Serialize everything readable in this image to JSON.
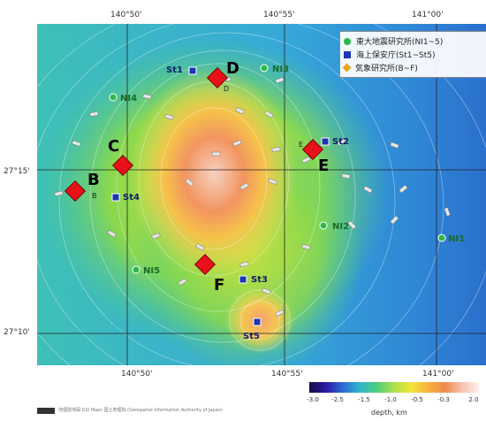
{
  "map": {
    "lon_ticks_top": [
      "140°50'",
      "140°55'",
      "141°00'"
    ],
    "lon_ticks_bottom": [
      "140°50'",
      "140°55'",
      "141°00'"
    ],
    "lat_ticks": [
      "27°15'",
      "27°10'"
    ]
  },
  "legend": {
    "items": [
      {
        "label": "東大地震研究所(NI1~5)",
        "color": "#2db84a",
        "shape": "circle"
      },
      {
        "label": "海上保安庁(St1~St5)",
        "color": "#1a35b5",
        "shape": "square"
      },
      {
        "label": "気象研究所(B~F)",
        "color": "#f0a020",
        "shape": "diamond"
      }
    ]
  },
  "markers": {
    "ni": [
      {
        "label": "NI1"
      },
      {
        "label": "NI2"
      },
      {
        "label": "NI3"
      },
      {
        "label": "NI4"
      },
      {
        "label": "NI5"
      }
    ],
    "st": [
      {
        "label": "St1"
      },
      {
        "label": "St2"
      },
      {
        "label": "St3"
      },
      {
        "label": "St4"
      },
      {
        "label": "St5"
      }
    ],
    "diamonds": [
      {
        "label": "B",
        "small": "B"
      },
      {
        "label": "C",
        "small": ""
      },
      {
        "label": "D",
        "small": "D"
      },
      {
        "label": "E",
        "small": "E"
      },
      {
        "label": "F",
        "small": ""
      }
    ]
  },
  "colorbar": {
    "ticks": [
      "-3.0",
      "-2.5",
      "-1.5",
      "-1.0",
      "-0.5",
      "-0.3",
      "2.0"
    ],
    "label": "depth, km"
  },
  "footer": {
    "text": "地理院地図 GSI Maps  国土地理院 (Geospatial Information Authority of Japan)"
  }
}
